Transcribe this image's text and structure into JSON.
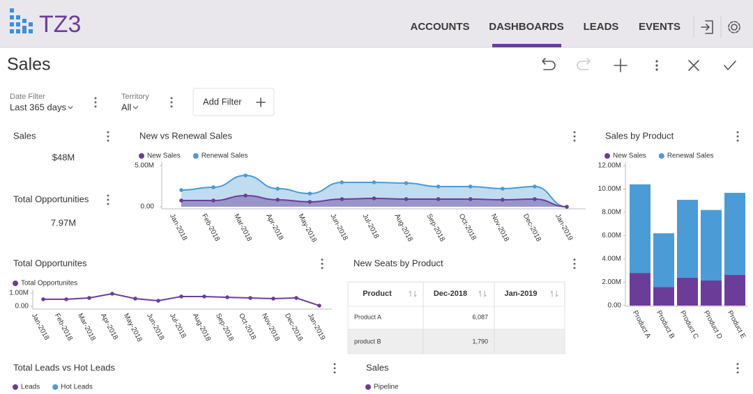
{
  "header": {
    "logo": "TZ3",
    "nav": [
      "ACCOUNTS",
      "DASHBOARDS",
      "LEADS",
      "EVENTS"
    ]
  },
  "page_title": "Sales",
  "filters": [
    {
      "label": "Date Filter",
      "value": "Last 365 days"
    },
    {
      "label": "Territory",
      "value": "All"
    }
  ],
  "add_filter": "Add Filter",
  "kpis": [
    {
      "title": "Sales",
      "value": "$48M"
    },
    {
      "title": "Total Opportunities",
      "value": "7.97M"
    }
  ],
  "charts": [
    {
      "type": "area",
      "title": "New vs Renewal Sales",
      "categories": [
        "Jan-2018",
        "Feb-2018",
        "Mar-2018",
        "Apr-2018",
        "May-2018",
        "Jun-2018",
        "Jul-2018",
        "Aug-2018",
        "Sep-2018",
        "Oct-2018",
        "Nov-2018",
        "Dec-2018",
        "Jan-2019"
      ],
      "series": [
        {
          "name": "New Sales",
          "color": "#6b3d99",
          "values": [
            760000,
            760000,
            1360000,
            850000,
            590000,
            930000,
            1020000,
            930000,
            930000,
            930000,
            850000,
            930000,
            0
          ]
        },
        {
          "name": "Renewal Sales",
          "color": "#4a9bd6",
          "values": [
            2030000,
            2370000,
            3810000,
            2200000,
            1610000,
            2970000,
            2970000,
            2880000,
            2460000,
            2460000,
            2200000,
            2460000,
            0
          ]
        }
      ],
      "ylim": [
        0,
        5000000
      ],
      "yticks": [
        {
          "value": 0,
          "label": "0.00"
        },
        {
          "value": 5000000,
          "label": "5.00M"
        }
      ]
    },
    {
      "type": "bar",
      "stacked": true,
      "title": "Sales by Product",
      "categories": [
        "Product A",
        "Product B",
        "Product C",
        "Product D",
        "Product E"
      ],
      "series": [
        {
          "name": "New Sales",
          "color": "#6b3d99",
          "values": [
            2800000,
            1600000,
            2400000,
            2150000,
            2630000
          ]
        },
        {
          "name": "Renewal Sales",
          "color": "#4a9bd6",
          "values": [
            7600000,
            4600000,
            6670000,
            6050000,
            7040000
          ]
        }
      ],
      "ylim": [
        0,
        12000000
      ],
      "yticks": [
        {
          "value": 0,
          "label": "0.00"
        },
        {
          "value": 2000000,
          "label": "2.00M"
        },
        {
          "value": 4000000,
          "label": "4.00M"
        },
        {
          "value": 6000000,
          "label": "6.00M"
        },
        {
          "value": 8000000,
          "label": "8.00M"
        },
        {
          "value": 10000000,
          "label": "10.00M"
        },
        {
          "value": 12000000,
          "label": "12.00M"
        }
      ]
    },
    {
      "type": "line",
      "title": "Total Opportunites",
      "categories": [
        "Jan-2018",
        "Feb-2018",
        "Mar-2018",
        "Apr-2018",
        "May-2018",
        "Jun-2018",
        "Jul-2018",
        "Aug-2018",
        "Sep-2018",
        "Oct-2018",
        "Nov-2018",
        "Dec-2018",
        "Jan-2019"
      ],
      "series": [
        {
          "name": "Total Opportunites",
          "color": "#6b3d99",
          "values": [
            530000,
            530000,
            630000,
            950000,
            580000,
            420000,
            740000,
            740000,
            680000,
            630000,
            580000,
            630000,
            50000
          ]
        }
      ],
      "ylim": [
        0,
        1000000
      ],
      "yticks": [
        {
          "value": 0,
          "label": "0.00"
        },
        {
          "value": 1000000,
          "label": "1.00M"
        }
      ]
    }
  ],
  "table": {
    "title": "New Seats by Product",
    "columns": [
      "Product",
      "Dec-2018",
      "Jan-2019"
    ],
    "rows": [
      [
        "Product A",
        "6,087"
      ],
      [
        "product B",
        "1,790"
      ]
    ]
  },
  "panels": [
    {
      "title": "Total Leads vs Hot Leads",
      "legend": [
        {
          "name": "Leads",
          "color": "#6b3d99"
        },
        {
          "name": "Hot Leads",
          "color": "#4a9bd6"
        }
      ]
    },
    {
      "title": "Sales",
      "legend": [
        {
          "name": "Pipeline",
          "color": "#6b3d99"
        }
      ]
    }
  ]
}
